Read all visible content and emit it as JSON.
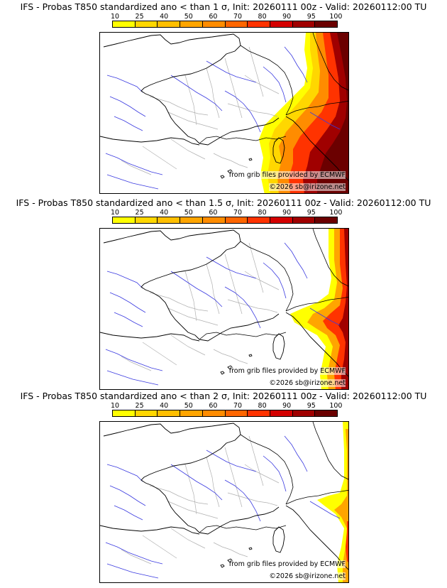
{
  "colorbar": {
    "labels": [
      "10",
      "25",
      "40",
      "50",
      "60",
      "70",
      "80",
      "90",
      "95",
      "100"
    ],
    "colors": [
      "#ffff00",
      "#ffd700",
      "#ffbf00",
      "#ffa500",
      "#ff8c00",
      "#ff6600",
      "#ff3300",
      "#d40000",
      "#a00000",
      "#6b0000"
    ]
  },
  "credits": {
    "source": "from grib files provided by ECMWF",
    "copyright": "©2026 sb@irizone.net"
  },
  "panels": [
    {
      "title": "IFS - Probas T850  standardized ano < than 1 σ, Init: 20260111 00z - Valid: 20260112:00 TU",
      "intensity": "high"
    },
    {
      "title": "IFS - Probas T850  standardized ano < than 1.5 σ, Init: 20260111 00z - Valid: 20260112:00 TU",
      "intensity": "medium"
    },
    {
      "title": "IFS - Probas T850  standardized ano < than 2 σ, Init: 20260111 00z - Valid: 20260112:00 TU",
      "intensity": "low"
    }
  ]
}
